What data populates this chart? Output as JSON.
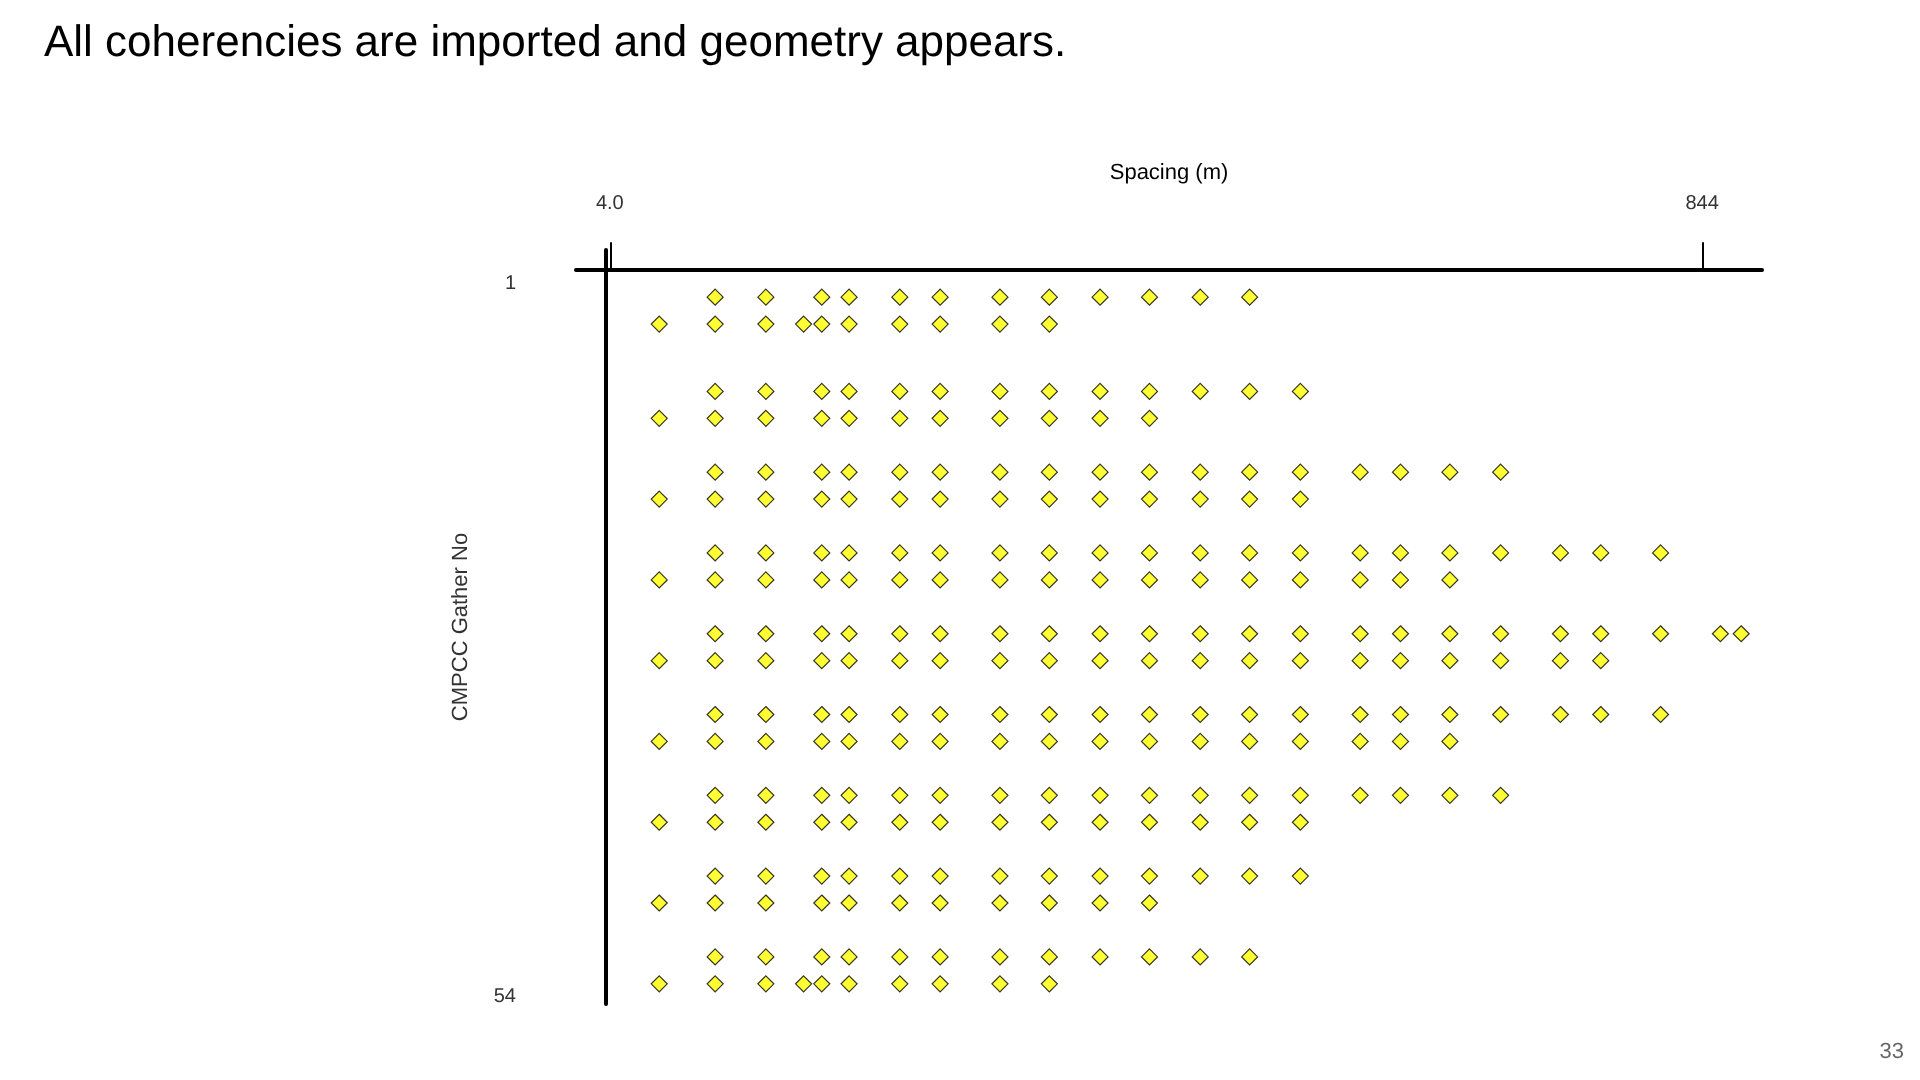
{
  "chart_data": {
    "type": "scatter",
    "title": "All coherencies are imported and geometry appears.",
    "xlabel": "Spacing (m)",
    "ylabel": "CMPCC Gather No",
    "annotations": [
      "33"
    ],
    "xlim": [
      -22,
      890
    ],
    "xticks": [
      {
        "value": 4,
        "label": "4.0"
      },
      844
    ],
    "ylim": [
      54.5,
      -1.5
    ],
    "yticks": [
      1,
      54
    ],
    "grid": false,
    "marker": "diamond",
    "series": [
      {
        "color": "#ffff00",
        "x": [
          85,
          124,
          167,
          188,
          227,
          258,
          304,
          342,
          381,
          419,
          458,
          496
        ],
        "values": [
          2,
          2,
          2,
          2,
          2,
          2,
          2,
          2,
          2,
          2,
          2,
          2
        ]
      },
      {
        "color": "#ffff00",
        "x": [
          42,
          85,
          124,
          153,
          167,
          188,
          227,
          258,
          304,
          342
        ],
        "values": [
          4,
          4,
          4,
          4,
          4,
          4,
          4,
          4,
          4,
          4
        ]
      },
      {
        "color": "#ffff00",
        "x": [
          85,
          124,
          167,
          188,
          227,
          258,
          304,
          342,
          381,
          419,
          458,
          496,
          535
        ],
        "values": [
          9,
          9,
          9,
          9,
          9,
          9,
          9,
          9,
          9,
          9,
          9,
          9,
          9
        ]
      },
      {
        "color": "#ffff00",
        "x": [
          42,
          85,
          124,
          167,
          188,
          227,
          258,
          304,
          342,
          381,
          419
        ],
        "values": [
          11,
          11,
          11,
          11,
          11,
          11,
          11,
          11,
          11,
          11,
          11
        ]
      },
      {
        "color": "#ffff00",
        "x": [
          85,
          124,
          167,
          188,
          227,
          258,
          304,
          342,
          381,
          419,
          458,
          496,
          535,
          581,
          612,
          650,
          689
        ],
        "values": [
          15,
          15,
          15,
          15,
          15,
          15,
          15,
          15,
          15,
          15,
          15,
          15,
          15,
          15,
          15,
          15,
          15
        ]
      },
      {
        "color": "#ffff00",
        "x": [
          42,
          85,
          124,
          167,
          188,
          227,
          258,
          304,
          342,
          381,
          419,
          458,
          496,
          535
        ],
        "values": [
          17,
          17,
          17,
          17,
          17,
          17,
          17,
          17,
          17,
          17,
          17,
          17,
          17,
          17
        ]
      },
      {
        "color": "#ffff00",
        "x": [
          85,
          124,
          167,
          188,
          227,
          258,
          304,
          342,
          381,
          419,
          458,
          496,
          535,
          581,
          612,
          650,
          689,
          735,
          766,
          812
        ],
        "values": [
          21,
          21,
          21,
          21,
          21,
          21,
          21,
          21,
          21,
          21,
          21,
          21,
          21,
          21,
          21,
          21,
          21,
          21,
          21,
          21
        ]
      },
      {
        "color": "#ffff00",
        "x": [
          42,
          85,
          124,
          167,
          188,
          227,
          258,
          304,
          342,
          381,
          419,
          458,
          496,
          535,
          581,
          612,
          650
        ],
        "values": [
          23,
          23,
          23,
          23,
          23,
          23,
          23,
          23,
          23,
          23,
          23,
          23,
          23,
          23,
          23,
          23,
          23
        ]
      },
      {
        "color": "#ffff00",
        "x": [
          85,
          124,
          167,
          188,
          227,
          258,
          304,
          342,
          381,
          419,
          458,
          496,
          535,
          581,
          612,
          650,
          689,
          735,
          766,
          812,
          858,
          874
        ],
        "values": [
          27,
          27,
          27,
          27,
          27,
          27,
          27,
          27,
          27,
          27,
          27,
          27,
          27,
          27,
          27,
          27,
          27,
          27,
          27,
          27,
          27,
          27
        ]
      },
      {
        "color": "#ffff00",
        "x": [
          42,
          85,
          124,
          167,
          188,
          227,
          258,
          304,
          342,
          381,
          419,
          458,
          496,
          535,
          581,
          612,
          650,
          689,
          735,
          766
        ],
        "values": [
          29,
          29,
          29,
          29,
          29,
          29,
          29,
          29,
          29,
          29,
          29,
          29,
          29,
          29,
          29,
          29,
          29,
          29,
          29,
          29
        ]
      },
      {
        "color": "#ffff00",
        "x": [
          85,
          124,
          167,
          188,
          227,
          258,
          304,
          342,
          381,
          419,
          458,
          496,
          535,
          581,
          612,
          650,
          689,
          735,
          766,
          812
        ],
        "values": [
          33,
          33,
          33,
          33,
          33,
          33,
          33,
          33,
          33,
          33,
          33,
          33,
          33,
          33,
          33,
          33,
          33,
          33,
          33,
          33
        ]
      },
      {
        "color": "#ffff00",
        "x": [
          42,
          85,
          124,
          167,
          188,
          227,
          258,
          304,
          342,
          381,
          419,
          458,
          496,
          535,
          581,
          612,
          650
        ],
        "values": [
          35,
          35,
          35,
          35,
          35,
          35,
          35,
          35,
          35,
          35,
          35,
          35,
          35,
          35,
          35,
          35,
          35
        ]
      },
      {
        "color": "#ffff00",
        "x": [
          85,
          124,
          167,
          188,
          227,
          258,
          304,
          342,
          381,
          419,
          458,
          496,
          535,
          581,
          612,
          650,
          689
        ],
        "values": [
          39,
          39,
          39,
          39,
          39,
          39,
          39,
          39,
          39,
          39,
          39,
          39,
          39,
          39,
          39,
          39,
          39
        ]
      },
      {
        "color": "#ffff00",
        "x": [
          42,
          85,
          124,
          167,
          188,
          227,
          258,
          304,
          342,
          381,
          419,
          458,
          496,
          535
        ],
        "values": [
          41,
          41,
          41,
          41,
          41,
          41,
          41,
          41,
          41,
          41,
          41,
          41,
          41,
          41
        ]
      },
      {
        "color": "#ffff00",
        "x": [
          85,
          124,
          167,
          188,
          227,
          258,
          304,
          342,
          381,
          419,
          458,
          496,
          535
        ],
        "values": [
          45,
          45,
          45,
          45,
          45,
          45,
          45,
          45,
          45,
          45,
          45,
          45,
          45
        ]
      },
      {
        "color": "#ffff00",
        "x": [
          42,
          85,
          124,
          167,
          188,
          227,
          258,
          304,
          342,
          381,
          419
        ],
        "values": [
          47,
          47,
          47,
          47,
          47,
          47,
          47,
          47,
          47,
          47,
          47
        ]
      },
      {
        "color": "#ffff00",
        "x": [
          85,
          124,
          167,
          188,
          227,
          258,
          304,
          342,
          381,
          419,
          458,
          496
        ],
        "values": [
          51,
          51,
          51,
          51,
          51,
          51,
          51,
          51,
          51,
          51,
          51,
          51
        ]
      },
      {
        "color": "#ffff00",
        "x": [
          42,
          85,
          124,
          153,
          167,
          188,
          227,
          258,
          304,
          342
        ],
        "values": [
          53,
          53,
          53,
          53,
          53,
          53,
          53,
          53,
          53,
          53
        ]
      }
    ]
  }
}
